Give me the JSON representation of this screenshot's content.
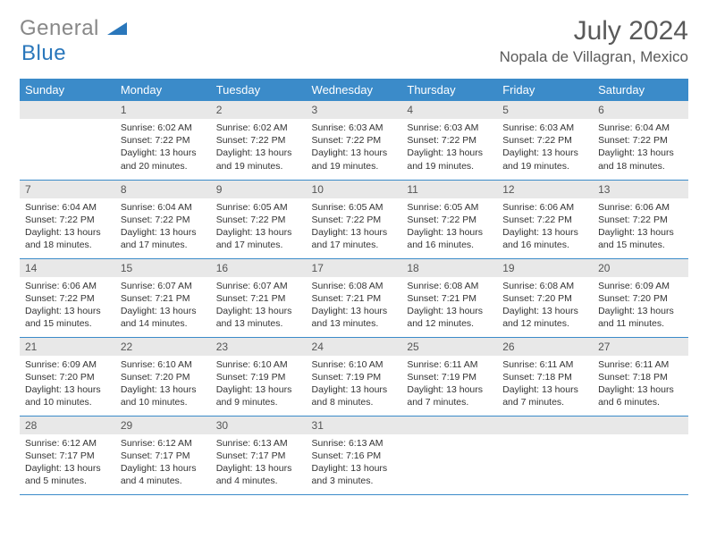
{
  "brand": {
    "part1": "General",
    "part2": "Blue"
  },
  "title": "July 2024",
  "location": "Nopala de Villagran, Mexico",
  "colors": {
    "header_bg": "#3b8bc9",
    "header_fg": "#ffffff",
    "daynum_bg": "#e8e8e8",
    "row_border": "#3b8bc9",
    "text": "#333333",
    "title_color": "#5a5a5a",
    "logo_blue": "#2a77bb"
  },
  "weekdays": [
    "Sunday",
    "Monday",
    "Tuesday",
    "Wednesday",
    "Thursday",
    "Friday",
    "Saturday"
  ],
  "weeks": [
    [
      null,
      {
        "n": "1",
        "sr": "6:02 AM",
        "ss": "7:22 PM",
        "dl": "13 hours and 20 minutes."
      },
      {
        "n": "2",
        "sr": "6:02 AM",
        "ss": "7:22 PM",
        "dl": "13 hours and 19 minutes."
      },
      {
        "n": "3",
        "sr": "6:03 AM",
        "ss": "7:22 PM",
        "dl": "13 hours and 19 minutes."
      },
      {
        "n": "4",
        "sr": "6:03 AM",
        "ss": "7:22 PM",
        "dl": "13 hours and 19 minutes."
      },
      {
        "n": "5",
        "sr": "6:03 AM",
        "ss": "7:22 PM",
        "dl": "13 hours and 19 minutes."
      },
      {
        "n": "6",
        "sr": "6:04 AM",
        "ss": "7:22 PM",
        "dl": "13 hours and 18 minutes."
      }
    ],
    [
      {
        "n": "7",
        "sr": "6:04 AM",
        "ss": "7:22 PM",
        "dl": "13 hours and 18 minutes."
      },
      {
        "n": "8",
        "sr": "6:04 AM",
        "ss": "7:22 PM",
        "dl": "13 hours and 17 minutes."
      },
      {
        "n": "9",
        "sr": "6:05 AM",
        "ss": "7:22 PM",
        "dl": "13 hours and 17 minutes."
      },
      {
        "n": "10",
        "sr": "6:05 AM",
        "ss": "7:22 PM",
        "dl": "13 hours and 17 minutes."
      },
      {
        "n": "11",
        "sr": "6:05 AM",
        "ss": "7:22 PM",
        "dl": "13 hours and 16 minutes."
      },
      {
        "n": "12",
        "sr": "6:06 AM",
        "ss": "7:22 PM",
        "dl": "13 hours and 16 minutes."
      },
      {
        "n": "13",
        "sr": "6:06 AM",
        "ss": "7:22 PM",
        "dl": "13 hours and 15 minutes."
      }
    ],
    [
      {
        "n": "14",
        "sr": "6:06 AM",
        "ss": "7:22 PM",
        "dl": "13 hours and 15 minutes."
      },
      {
        "n": "15",
        "sr": "6:07 AM",
        "ss": "7:21 PM",
        "dl": "13 hours and 14 minutes."
      },
      {
        "n": "16",
        "sr": "6:07 AM",
        "ss": "7:21 PM",
        "dl": "13 hours and 13 minutes."
      },
      {
        "n": "17",
        "sr": "6:08 AM",
        "ss": "7:21 PM",
        "dl": "13 hours and 13 minutes."
      },
      {
        "n": "18",
        "sr": "6:08 AM",
        "ss": "7:21 PM",
        "dl": "13 hours and 12 minutes."
      },
      {
        "n": "19",
        "sr": "6:08 AM",
        "ss": "7:20 PM",
        "dl": "13 hours and 12 minutes."
      },
      {
        "n": "20",
        "sr": "6:09 AM",
        "ss": "7:20 PM",
        "dl": "13 hours and 11 minutes."
      }
    ],
    [
      {
        "n": "21",
        "sr": "6:09 AM",
        "ss": "7:20 PM",
        "dl": "13 hours and 10 minutes."
      },
      {
        "n": "22",
        "sr": "6:10 AM",
        "ss": "7:20 PM",
        "dl": "13 hours and 10 minutes."
      },
      {
        "n": "23",
        "sr": "6:10 AM",
        "ss": "7:19 PM",
        "dl": "13 hours and 9 minutes."
      },
      {
        "n": "24",
        "sr": "6:10 AM",
        "ss": "7:19 PM",
        "dl": "13 hours and 8 minutes."
      },
      {
        "n": "25",
        "sr": "6:11 AM",
        "ss": "7:19 PM",
        "dl": "13 hours and 7 minutes."
      },
      {
        "n": "26",
        "sr": "6:11 AM",
        "ss": "7:18 PM",
        "dl": "13 hours and 7 minutes."
      },
      {
        "n": "27",
        "sr": "6:11 AM",
        "ss": "7:18 PM",
        "dl": "13 hours and 6 minutes."
      }
    ],
    [
      {
        "n": "28",
        "sr": "6:12 AM",
        "ss": "7:17 PM",
        "dl": "13 hours and 5 minutes."
      },
      {
        "n": "29",
        "sr": "6:12 AM",
        "ss": "7:17 PM",
        "dl": "13 hours and 4 minutes."
      },
      {
        "n": "30",
        "sr": "6:13 AM",
        "ss": "7:17 PM",
        "dl": "13 hours and 4 minutes."
      },
      {
        "n": "31",
        "sr": "6:13 AM",
        "ss": "7:16 PM",
        "dl": "13 hours and 3 minutes."
      },
      null,
      null,
      null
    ]
  ],
  "labels": {
    "sunrise": "Sunrise:",
    "sunset": "Sunset:",
    "daylight": "Daylight:"
  }
}
